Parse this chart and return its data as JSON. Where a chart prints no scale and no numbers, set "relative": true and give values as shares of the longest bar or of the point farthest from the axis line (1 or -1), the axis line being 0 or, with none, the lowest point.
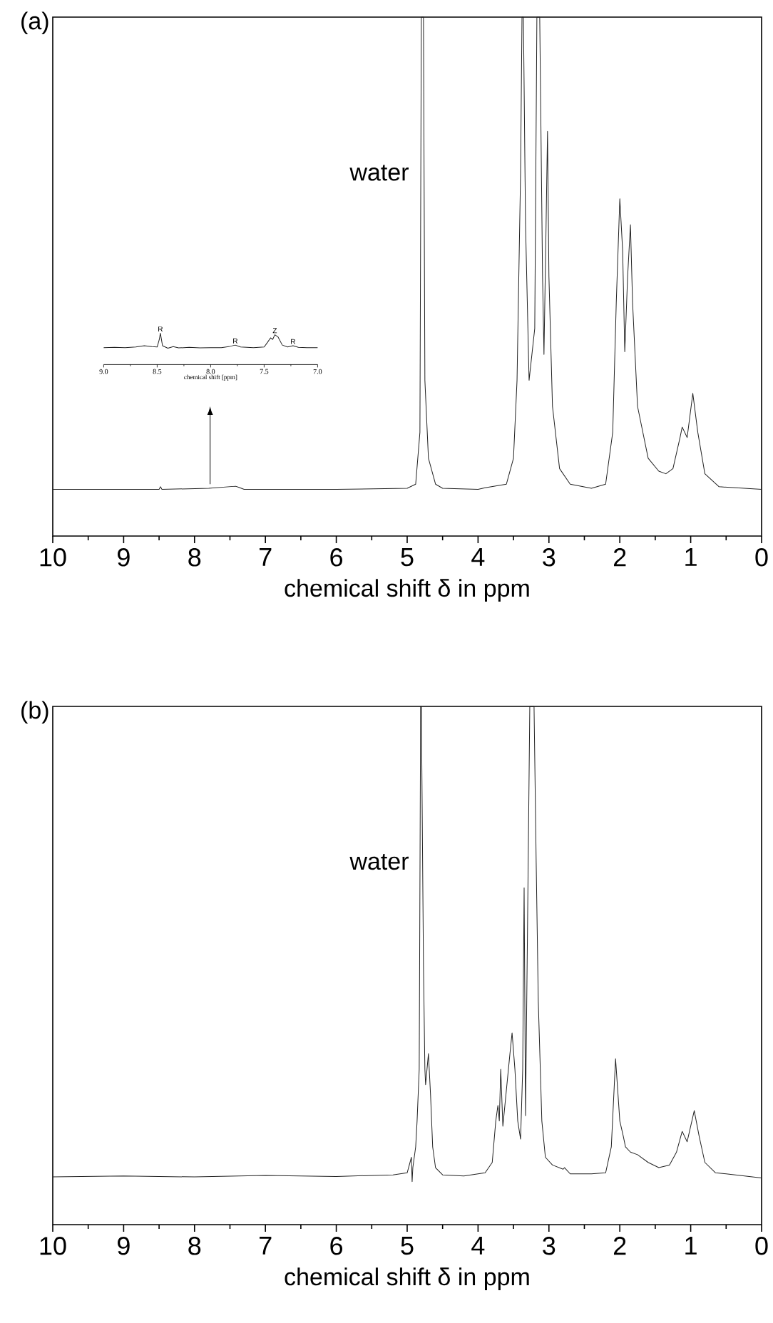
{
  "chart_data": [
    {
      "type": "line",
      "title": "(a)",
      "xlabel": "chemical shift δ in ppm",
      "relative": true,
      "xlim": [
        10,
        0
      ],
      "xticks": [
        10,
        9,
        8,
        7,
        6,
        5,
        4,
        3,
        2,
        1,
        0
      ],
      "annotations": [
        "water"
      ],
      "series": [
        {
          "color": "#222222",
          "x": [
            10,
            9,
            8.5,
            8.48,
            8.46,
            7.8,
            7.42,
            7.38,
            7.3,
            6,
            5.0,
            4.88,
            4.82,
            4.8,
            4.77,
            4.75,
            4.7,
            4.6,
            4.5,
            4.0,
            3.9,
            3.6,
            3.5,
            3.45,
            3.4,
            3.38,
            3.36,
            3.33,
            3.28,
            3.24,
            3.2,
            3.17,
            3.13,
            3.09,
            3.07,
            3.04,
            3.02,
            3.0,
            2.95,
            2.85,
            2.7,
            2.4,
            2.2,
            2.1,
            2.05,
            2.0,
            1.96,
            1.93,
            1.89,
            1.85,
            1.82,
            1.75,
            1.6,
            1.45,
            1.35,
            1.25,
            1.15,
            1.12,
            1.05,
            0.97,
            0.9,
            0.8,
            0.6,
            0
          ],
          "values": [
            0.09,
            0.09,
            0.09,
            0.095,
            0.09,
            0.092,
            0.096,
            0.094,
            0.09,
            0.09,
            0.092,
            0.1,
            0.2,
            1,
            1,
            0.3,
            0.15,
            0.1,
            0.092,
            0.09,
            0.093,
            0.1,
            0.15,
            0.3,
            0.7,
            1,
            1,
            0.6,
            0.3,
            0.35,
            0.4,
            1,
            1,
            0.5,
            0.35,
            0.6,
            0.78,
            0.5,
            0.25,
            0.13,
            0.1,
            0.092,
            0.1,
            0.2,
            0.45,
            0.65,
            0.55,
            0.355,
            0.5,
            0.6,
            0.45,
            0.25,
            0.15,
            0.125,
            0.12,
            0.13,
            0.19,
            0.21,
            0.19,
            0.275,
            0.2,
            0.12,
            0.095,
            0.09
          ]
        }
      ]
    },
    {
      "type": "line",
      "xlabel": "chemical shift [ppm]",
      "relative": true,
      "xlim": [
        9,
        7
      ],
      "xticks": [
        {
          "value": 9,
          "label": "9.0"
        },
        {
          "value": 8.5,
          "label": "8.5"
        },
        {
          "value": 8,
          "label": "8.0"
        },
        {
          "value": 7.5,
          "label": "7.5"
        },
        {
          "value": 7,
          "label": "7.0"
        }
      ],
      "annotations": [
        {
          "text": "R",
          "x": 8.47,
          "y": 1.0
        },
        {
          "text": "R",
          "x": 7.77,
          "y": 0.62
        },
        {
          "text": "Z",
          "x": 7.4,
          "y": 0.95
        },
        {
          "text": "R",
          "x": 7.23,
          "y": 0.6
        }
      ],
      "series": [
        {
          "color": "#222222",
          "x": [
            9,
            8.9,
            8.8,
            8.7,
            8.62,
            8.55,
            8.5,
            8.48,
            8.47,
            8.45,
            8.4,
            8.35,
            8.3,
            8.2,
            8.1,
            8,
            7.9,
            7.82,
            7.77,
            7.72,
            7.6,
            7.5,
            7.47,
            7.44,
            7.42,
            7.4,
            7.37,
            7.33,
            7.28,
            7.23,
            7.18,
            7.1,
            7
          ],
          "values": [
            0.54,
            0.55,
            0.54,
            0.56,
            0.6,
            0.57,
            0.56,
            0.8,
            1.0,
            0.6,
            0.52,
            0.57,
            0.53,
            0.55,
            0.53,
            0.54,
            0.54,
            0.58,
            0.62,
            0.56,
            0.54,
            0.56,
            0.7,
            0.85,
            0.8,
            0.95,
            0.88,
            0.62,
            0.56,
            0.6,
            0.55,
            0.54,
            0.54
          ]
        }
      ]
    },
    {
      "type": "line",
      "title": "(b)",
      "xlabel": "chemical shift δ in ppm",
      "relative": true,
      "xlim": [
        10,
        0
      ],
      "xticks": [
        10,
        9,
        8,
        7,
        6,
        5,
        4,
        3,
        2,
        1,
        0
      ],
      "annotations": [
        "water"
      ],
      "series": [
        {
          "color": "#222222",
          "x": [
            10,
            9,
            8,
            7,
            6,
            5.2,
            5.0,
            4.94,
            4.93,
            4.92,
            4.88,
            4.86,
            4.83,
            4.81,
            4.8,
            4.77,
            4.75,
            4.74,
            4.72,
            4.7,
            4.67,
            4.64,
            4.6,
            4.5,
            4.2,
            3.9,
            3.8,
            3.75,
            3.72,
            3.7,
            3.68,
            3.65,
            3.6,
            3.55,
            3.52,
            3.48,
            3.44,
            3.4,
            3.37,
            3.35,
            3.33,
            3.3,
            3.27,
            3.25,
            3.21,
            3.2,
            3.18,
            3.15,
            3.1,
            3.05,
            2.95,
            2.8,
            2.78,
            2.7,
            2.4,
            2.2,
            2.12,
            2.06,
            2.0,
            1.95,
            1.92,
            1.85,
            1.75,
            1.6,
            1.45,
            1.3,
            1.2,
            1.12,
            1.05,
            0.95,
            0.88,
            0.8,
            0.65,
            0.5,
            0
          ],
          "values": [
            0.092,
            0.094,
            0.092,
            0.095,
            0.093,
            0.096,
            0.1,
            0.13,
            0.083,
            0.11,
            0.15,
            0.2,
            0.3,
            1,
            1,
            0.5,
            0.3,
            0.27,
            0.3,
            0.33,
            0.25,
            0.15,
            0.11,
            0.096,
            0.094,
            0.1,
            0.12,
            0.2,
            0.23,
            0.2,
            0.3,
            0.19,
            0.26,
            0.33,
            0.37,
            0.3,
            0.2,
            0.165,
            0.3,
            0.65,
            0.21,
            0.6,
            1,
            1,
            1,
            0.9,
            0.7,
            0.43,
            0.2,
            0.13,
            0.115,
            0.107,
            0.11,
            0.098,
            0.098,
            0.1,
            0.15,
            0.32,
            0.2,
            0.17,
            0.15,
            0.14,
            0.135,
            0.12,
            0.11,
            0.115,
            0.14,
            0.18,
            0.16,
            0.22,
            0.17,
            0.12,
            0.1,
            0.098,
            0.09
          ]
        }
      ]
    }
  ]
}
